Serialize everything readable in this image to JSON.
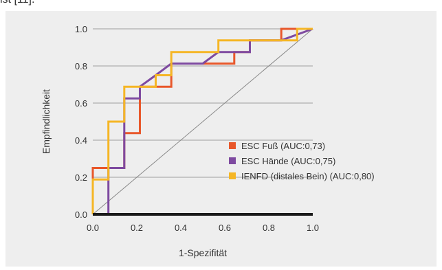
{
  "context": {
    "text_fragment": "ist [11]."
  },
  "chart_data": {
    "type": "line",
    "title": "",
    "xlabel": "1-Spezifität",
    "ylabel": "Empfindlichkeit",
    "xlim": [
      0.0,
      1.0
    ],
    "ylim": [
      0.0,
      1.0
    ],
    "x_ticks": [
      "0.0",
      "0.2",
      "0.4",
      "0.6",
      "0.8",
      "1.0"
    ],
    "y_ticks": [
      "0.0",
      "0.2",
      "0.4",
      "0.6",
      "0.8",
      "1.0"
    ],
    "grid": "horizontal",
    "legend_position": "center-right",
    "reference_line": {
      "from": [
        0,
        0
      ],
      "to": [
        1,
        1
      ],
      "color": "#888888"
    },
    "series": [
      {
        "name": "ESC Fuß (AUC:0,73)",
        "color": "#e8572a",
        "points": [
          [
            0,
            0
          ],
          [
            0,
            0.25
          ],
          [
            0.143,
            0.25
          ],
          [
            0.143,
            0.438
          ],
          [
            0.214,
            0.438
          ],
          [
            0.214,
            0.688
          ],
          [
            0.357,
            0.688
          ],
          [
            0.357,
            0.75
          ],
          [
            0.357,
            0.813
          ],
          [
            0.643,
            0.813
          ],
          [
            0.643,
            0.875
          ],
          [
            0.714,
            0.875
          ],
          [
            0.714,
            0.938
          ],
          [
            0.857,
            0.938
          ],
          [
            0.857,
            1.0
          ],
          [
            1.0,
            1.0
          ]
        ]
      },
      {
        "name": "ESC Hände (AUC:0,75)",
        "color": "#7e4aa0",
        "points": [
          [
            0.071,
            0
          ],
          [
            0.071,
            0.25
          ],
          [
            0.143,
            0.25
          ],
          [
            0.143,
            0.625
          ],
          [
            0.214,
            0.625
          ],
          [
            0.214,
            0.688
          ],
          [
            0.286,
            0.75
          ],
          [
            0.357,
            0.813
          ],
          [
            0.5,
            0.813
          ],
          [
            0.571,
            0.875
          ],
          [
            0.714,
            0.875
          ],
          [
            0.714,
            0.938
          ],
          [
            0.857,
            0.938
          ],
          [
            1.0,
            1.0
          ]
        ]
      },
      {
        "name": "IENFD (distales Bein) (AUC:0,80)",
        "color": "#f5b625",
        "points": [
          [
            0,
            0
          ],
          [
            0,
            0.188
          ],
          [
            0.071,
            0.188
          ],
          [
            0.071,
            0.5
          ],
          [
            0.143,
            0.5
          ],
          [
            0.143,
            0.688
          ],
          [
            0.286,
            0.688
          ],
          [
            0.286,
            0.75
          ],
          [
            0.357,
            0.75
          ],
          [
            0.357,
            0.875
          ],
          [
            0.571,
            0.875
          ],
          [
            0.571,
            0.938
          ],
          [
            0.929,
            0.938
          ],
          [
            0.929,
            1.0
          ],
          [
            1.0,
            1.0
          ]
        ]
      }
    ]
  }
}
